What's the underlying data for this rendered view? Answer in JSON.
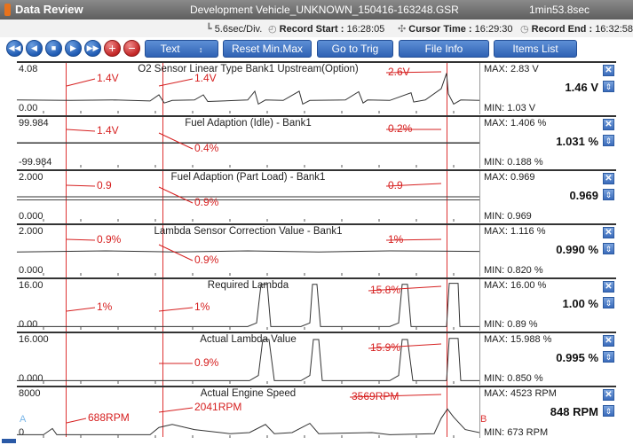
{
  "titlebar": {
    "app_title": "Data Review",
    "file_name": "Development Vehicle_UNKNOWN_150416-163248.GSR",
    "duration": "1min53.8sec"
  },
  "info": {
    "time_per_div": "5.6sec/Div.",
    "record_start_label": "Record Start :",
    "record_start": "16:28:05",
    "cursor_time_label": "Cursor Time :",
    "cursor_time": "16:29:30",
    "record_end_label": "Record End :",
    "record_end": "16:32:58"
  },
  "toolbar": {
    "text_label": "Text",
    "reset_label": "Reset Min.Max",
    "go_to_trig_label": "Go to Trig",
    "file_info_label": "File Info",
    "items_list_label": "Items List"
  },
  "markers": {
    "a": "A",
    "b": "B"
  },
  "channels": [
    {
      "name": "O2 Sensor Linear Type Bank1 Upstream(Option)",
      "scale_max": "4.08",
      "scale_min": "0.00",
      "max": "MAX:  2.83 V",
      "min": "MIN:  1.03 V",
      "current": "1.46 V",
      "annotations": [
        "1.4V",
        "1.4V",
        "2.6V"
      ]
    },
    {
      "name": "Fuel Adaption (Idle) - Bank1",
      "scale_max": "99.984",
      "scale_min": "-99.984",
      "max": "MAX:  1.406 %",
      "min": "MIN:  0.188 %",
      "current": "1.031 %",
      "annotations": [
        "1.4V",
        "0.4%",
        "0.2%"
      ]
    },
    {
      "name": "Fuel Adaption (Part Load) - Bank1",
      "scale_max": "2.000",
      "scale_min": "0.000",
      "max": "MAX:  0.969",
      "min": "MIN:  0.969",
      "current": "0.969",
      "annotations": [
        "0.9",
        "0.9%",
        "0.9"
      ]
    },
    {
      "name": "Lambda Sensor Correction Value - Bank1",
      "scale_max": "2.000",
      "scale_min": "0.000",
      "max": "MAX:  1.116 %",
      "min": "MIN:  0.820 %",
      "current": "0.990 %",
      "annotations": [
        "0.9%",
        "0.9%",
        "1%"
      ]
    },
    {
      "name": "Required Lambda",
      "scale_max": "16.00",
      "scale_min": "0.00",
      "max": "MAX:  16.00 %",
      "min": "MIN:  0.89 %",
      "current": "1.00 %",
      "annotations": [
        "1%",
        "1%",
        "15.8%"
      ]
    },
    {
      "name": "Actual Lambda Value",
      "scale_max": "16.000",
      "scale_min": "0.000",
      "max": "MAX:  15.988 %",
      "min": "MIN:  0.850 %",
      "current": "0.995 %",
      "annotations": [
        "0.9%",
        "15.9%"
      ]
    },
    {
      "name": "Actual Engine Speed",
      "scale_max": "8000",
      "scale_min": "0",
      "max": "MAX:   4523 RPM",
      "min": "MIN:   673 RPM",
      "current": "848 RPM",
      "annotations": [
        "688RPM",
        "2041RPM",
        "3569RPM"
      ]
    }
  ],
  "colors": {
    "annotation": "#d62020",
    "cursor": "#dd3333",
    "button_blue": "#2f62b4"
  }
}
